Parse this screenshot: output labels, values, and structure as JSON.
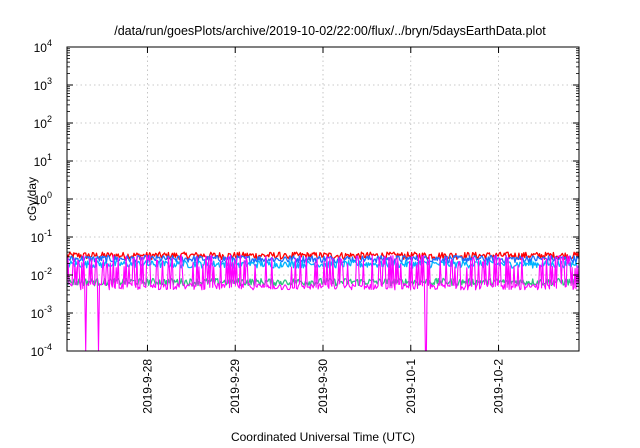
{
  "chart_data": {
    "type": "line",
    "title": "/data/run/goesPlots/archive/2019-10-02/22:00/flux/../bryn/5daysEarthData.plot",
    "xlabel": "Coordinated Universal Time (UTC)",
    "ylabel": "cGy/day",
    "y_scale": "log",
    "ylim_exponents": [
      -4,
      4
    ],
    "yticks": [
      {
        "base": "10",
        "exp": "-4"
      },
      {
        "base": "10",
        "exp": "-3"
      },
      {
        "base": "10",
        "exp": "-2"
      },
      {
        "base": "10",
        "exp": "-1"
      },
      {
        "base": "10",
        "exp": "0"
      },
      {
        "base": "10",
        "exp": "1"
      },
      {
        "base": "10",
        "exp": "2"
      },
      {
        "base": "10",
        "exp": "3"
      },
      {
        "base": "10",
        "exp": "4"
      }
    ],
    "xlim": [
      "2019-09-27T02:00",
      "2019-10-02T22:00"
    ],
    "xticks": [
      {
        "label": "2019-9-28",
        "date": "2019-09-28T00:00"
      },
      {
        "label": "2019-9-29",
        "date": "2019-09-29T00:00"
      },
      {
        "label": "2019-9-30",
        "date": "2019-09-30T00:00"
      },
      {
        "label": "2019-10-1",
        "date": "2019-10-01T00:00"
      },
      {
        "label": "2019-10-2",
        "date": "2019-10-02T00:00"
      }
    ],
    "grid": true,
    "legend": "none",
    "series": [
      {
        "color": "#ff0000",
        "baseline": 0.032
      },
      {
        "color": "#1a6fff",
        "baseline": 0.026
      },
      {
        "color": "#00b3ff",
        "baseline": 0.019
      },
      {
        "color": "#2ec27e",
        "baseline": 0.0065
      },
      {
        "color": "#ff00ff",
        "baseline": 0.0048
      }
    ],
    "dropouts": [
      {
        "start": "2019-09-27T07:00",
        "end": "2019-09-27T07:20"
      },
      {
        "start": "2019-09-27T10:25",
        "end": "2019-09-27T10:45"
      },
      {
        "start": "2019-10-01T04:00",
        "end": "2019-10-01T04:25"
      }
    ]
  }
}
